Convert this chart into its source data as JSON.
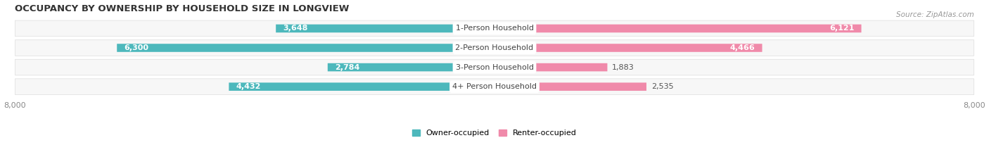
{
  "title": "OCCUPANCY BY OWNERSHIP BY HOUSEHOLD SIZE IN LONGVIEW",
  "source": "Source: ZipAtlas.com",
  "categories": [
    "1-Person Household",
    "2-Person Household",
    "3-Person Household",
    "4+ Person Household"
  ],
  "owner_values": [
    3648,
    6300,
    2784,
    4432
  ],
  "renter_values": [
    6121,
    4466,
    1883,
    2535
  ],
  "owner_color": "#4db8bc",
  "owner_color_dark": "#2a9da0",
  "renter_color": "#f08aaa",
  "renter_color_light": "#f5b0c8",
  "axis_max": 8000,
  "legend_owner": "Owner-occupied",
  "legend_renter": "Renter-occupied",
  "title_fontsize": 9.5,
  "source_fontsize": 7.5,
  "label_fontsize": 8,
  "cat_fontsize": 8,
  "tick_fontsize": 8,
  "background_color": "#ffffff",
  "row_bg_light": "#f7f7f7",
  "row_bg_mid": "#eeeeee",
  "row_border": "#dddddd"
}
